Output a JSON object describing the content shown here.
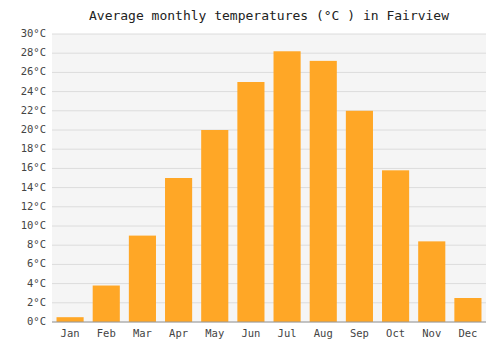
{
  "chart_data": {
    "type": "bar",
    "title": "Average monthly temperatures (°C ) in Fairview",
    "categories": [
      "Jan",
      "Feb",
      "Mar",
      "Apr",
      "May",
      "Jun",
      "Jul",
      "Aug",
      "Sep",
      "Oct",
      "Nov",
      "Dec"
    ],
    "values": [
      0.5,
      3.8,
      9.0,
      15.0,
      20.0,
      25.0,
      28.2,
      27.2,
      22.0,
      15.8,
      8.4,
      2.5
    ],
    "color": "#FFA726",
    "ylim": [
      0,
      30
    ],
    "yticks": [
      {
        "value": 0,
        "label": "0°C"
      },
      {
        "value": 2,
        "label": "2°C"
      },
      {
        "value": 4,
        "label": "4°C"
      },
      {
        "value": 6,
        "label": "6°C"
      },
      {
        "value": 8,
        "label": "8°C"
      },
      {
        "value": 10,
        "label": "10°C"
      },
      {
        "value": 12,
        "label": "12°C"
      },
      {
        "value": 14,
        "label": "14°C"
      },
      {
        "value": 16,
        "label": "16°C"
      },
      {
        "value": 18,
        "label": "18°C"
      },
      {
        "value": 20,
        "label": "20°C"
      },
      {
        "value": 22,
        "label": "22°C"
      },
      {
        "value": 24,
        "label": "24°C"
      },
      {
        "value": 26,
        "label": "26°C"
      },
      {
        "value": 28,
        "label": "28°C"
      },
      {
        "value": 30,
        "label": "30°C"
      }
    ],
    "grid": true
  }
}
